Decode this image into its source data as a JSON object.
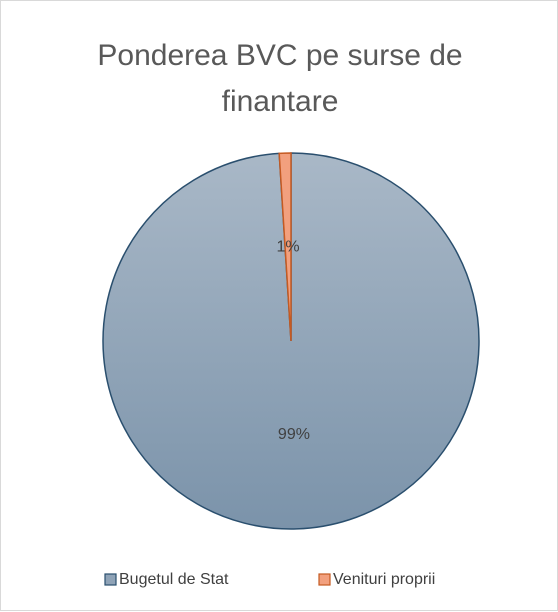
{
  "chart_data": {
    "type": "pie",
    "title": "Ponderea BVC pe surse de finantare",
    "categories": [
      "Bugetul de Stat",
      "Venituri proprii"
    ],
    "values": [
      99,
      1
    ],
    "value_labels": [
      "99%",
      "1%"
    ],
    "colors": [
      "#8fa3b7",
      "#f2a07e"
    ],
    "legend": "bottom"
  }
}
